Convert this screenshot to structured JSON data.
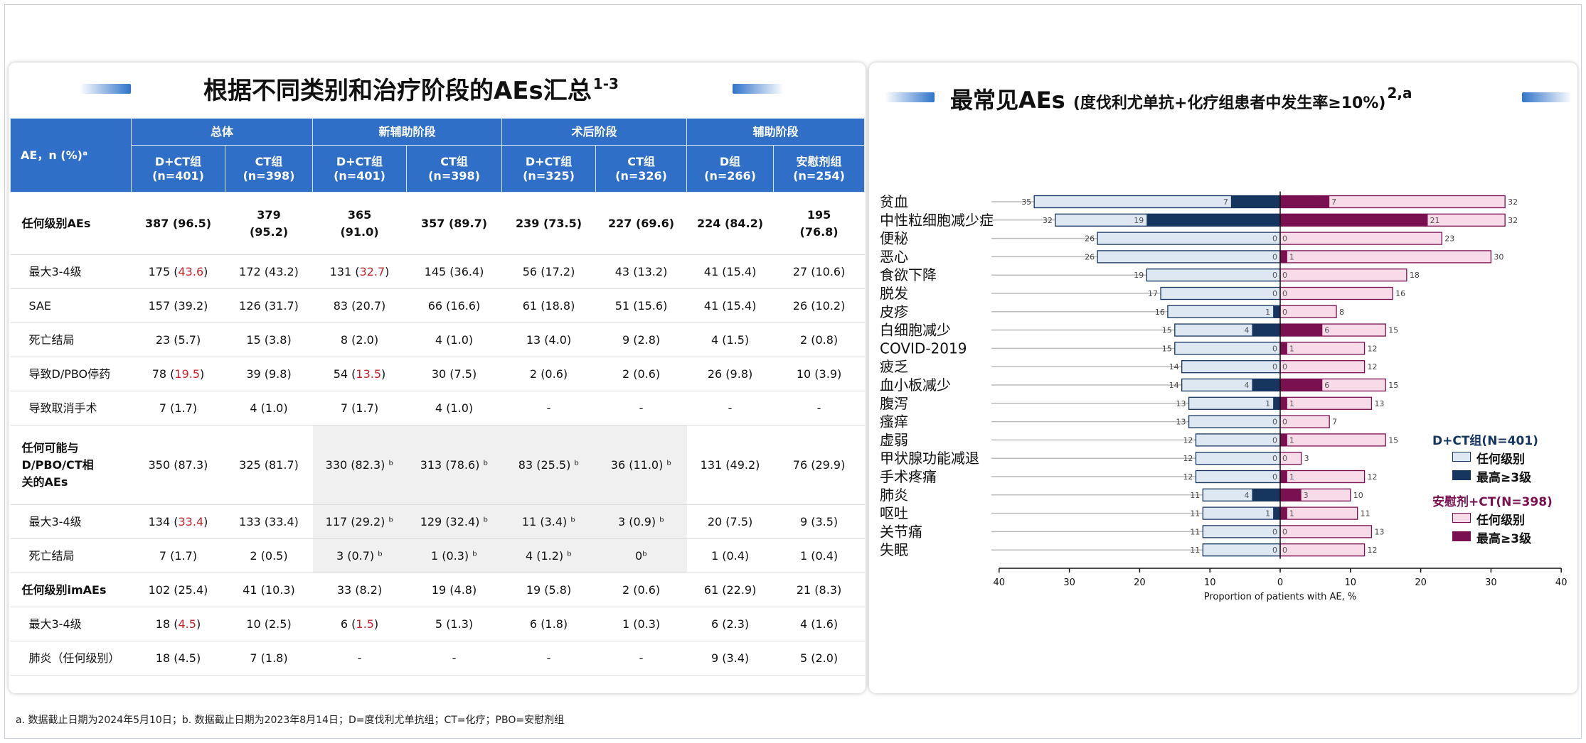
{
  "left": {
    "title": "根据不同类别和治疗阶段的AEs汇总",
    "title_sup": "1-3",
    "header": {
      "ae_col": "AE，n (%)ᵃ",
      "groups": [
        "总体",
        "新辅助阶段",
        "术后阶段",
        "辅助阶段"
      ],
      "subcols": [
        [
          "D+CT组",
          "(n=401)"
        ],
        [
          "CT组",
          "(n=398)"
        ],
        [
          "D+CT组",
          "(n=401)"
        ],
        [
          "CT组",
          "(n=398)"
        ],
        [
          "D+CT组",
          "(n=325)"
        ],
        [
          "CT组",
          "(n=326)"
        ],
        [
          "D组",
          "(n=266)"
        ],
        [
          "安慰剂组",
          "(n=254)"
        ]
      ]
    },
    "rows": [
      {
        "label": "任何级别AEs",
        "bold": true,
        "cells": [
          "387 (96.5)",
          "379 (95.2)",
          "365 (91.0)",
          "357 (89.7)",
          "239 (73.5)",
          "227 (69.6)",
          "224 (84.2)",
          "195 (76.8)"
        ]
      },
      {
        "label": "最大3-4级",
        "cells": [
          "175 (43.6)",
          "172 (43.2)",
          "131 (32.7)",
          "145 (36.4)",
          "56 (17.2)",
          "43 (13.2)",
          "41 (15.4)",
          "27 (10.6)"
        ]
      },
      {
        "label": "SAE",
        "cells": [
          "157 (39.2)",
          "126 (31.7)",
          "83 (20.7)",
          "66 (16.6)",
          "61 (18.8)",
          "51 (15.6)",
          "41 (15.4)",
          "26 (10.2)"
        ]
      },
      {
        "label": "死亡结局",
        "cells": [
          "23 (5.7)",
          "15 (3.8)",
          "8 (2.0)",
          "4 (1.0)",
          "13 (4.0)",
          "9 (2.8)",
          "4 (1.5)",
          "2 (0.8)"
        ]
      },
      {
        "label": "导致D/PBO停药",
        "cells": [
          "78 (19.5)",
          "39 (9.8)",
          "54 (13.5)",
          "30 (7.5)",
          "2 (0.6)",
          "2 (0.6)",
          "26 (9.8)",
          "10 (3.9)"
        ]
      },
      {
        "label": "导致取消手术",
        "cells": [
          "7 (1.7)",
          "4 (1.0)",
          "7 (1.7)",
          "4 (1.0)",
          "-",
          "-",
          "-",
          "-"
        ]
      },
      {
        "label": "任何可能与D/PBO/CT相关的AEs",
        "bold": true,
        "cells": [
          "350 (87.3)",
          "325 (81.7)",
          "330 (82.3) ᵇ",
          "313 (78.6) ᵇ",
          "83 (25.5) ᵇ",
          "36 (11.0) ᵇ",
          "131 (49.2)",
          "76 (29.9)"
        ]
      },
      {
        "label": "最大3-4级",
        "cells": [
          "134 (33.4)",
          "133 (33.4)",
          "117 (29.2) ᵇ",
          "129 (32.4) ᵇ",
          "11 (3.4) ᵇ",
          "3 (0.9) ᵇ",
          "20 (7.5)",
          "9 (3.5)"
        ]
      },
      {
        "label": "死亡结局",
        "cells": [
          "7 (1.7)",
          "2 (0.5)",
          "3 (0.7) ᵇ",
          "1 (0.3) ᵇ",
          "4 (1.2) ᵇ",
          "0ᵇ",
          "1 (0.4)",
          "1 (0.4)"
        ]
      },
      {
        "label": "任何级别imAEs",
        "bold": true,
        "cells": [
          "102 (25.4)",
          "41 (10.3)",
          "33 (8.2)",
          "19 (4.8)",
          "19 (5.8)",
          "2 (0.6)",
          "61 (22.9)",
          "21 (8.3)"
        ]
      },
      {
        "label": "最大3-4级",
        "cells": [
          "18 (4.5)",
          "10 (2.5)",
          "6 (1.5)",
          "5 (1.3)",
          "6 (1.8)",
          "1 (0.3)",
          "6 (2.3)",
          "4 (1.6)"
        ]
      },
      {
        "label": "肺炎（任何级别）",
        "cells": [
          "18 (4.5)",
          "7 (1.8)",
          "-",
          "-",
          "-",
          "-",
          "9 (3.4)",
          "5 (2.0)"
        ]
      }
    ]
  },
  "right": {
    "title": "最常见AEs",
    "title_sub": "(度伐利尤单抗+化疗组患者中发生率≥10%)",
    "title_sup": "2,a",
    "legend": {
      "dct_title": "D+CT组(N=401)",
      "pbo_title": "安慰剂+CT(N=398)",
      "any": "任何级别",
      "g3": "最高≥3级"
    }
  },
  "footnote": "a. 数据截止日期为2024年5月10日；b. 数据截止日期为2023年8月14日；D=度伐利尤单抗组；CT=化疗；PBO=安慰剂组",
  "colors": {
    "header_blue": "#2f6fc7",
    "red_text": "#c2242a",
    "dct_any_fill": "#dde8f3",
    "dct_any_stroke": "#16355f",
    "dct_g3": "#16355f",
    "pbo_any_fill": "#f7dbe8",
    "pbo_any_stroke": "#7a1050",
    "pbo_g3": "#7a1050"
  },
  "chart_data": {
    "type": "bar",
    "orientation": "horizontal-butterfly",
    "xlabel": "Proportion of patients with AE, %",
    "xlim": [
      -40,
      40
    ],
    "xticks": [
      40,
      30,
      20,
      10,
      0,
      10,
      20,
      30,
      40
    ],
    "categories": [
      "贫血",
      "中性粒细胞减少症",
      "便秘",
      "恶心",
      "食欲下降",
      "脱发",
      "皮疹",
      "白细胞减少",
      "COVID-2019",
      "疲乏",
      "血小板减少",
      "腹泻",
      "瘙痒",
      "虚弱",
      "甲状腺功能减退",
      "手术疼痛",
      "肺炎",
      "呕吐",
      "关节痛",
      "失眠"
    ],
    "series": [
      {
        "name": "D+CT组(N=401) 任何级别",
        "side": "left",
        "values": [
          35,
          32,
          26,
          26,
          19,
          17,
          16,
          15,
          15,
          14,
          14,
          13,
          13,
          12,
          12,
          12,
          11,
          11,
          11,
          11
        ]
      },
      {
        "name": "D+CT组(N=401) 最高≥3级",
        "side": "left",
        "values": [
          7,
          19,
          0,
          0,
          0,
          0,
          1,
          4,
          0,
          0,
          4,
          1,
          0,
          0,
          0,
          0,
          4,
          1,
          0,
          0
        ]
      },
      {
        "name": "安慰剂+CT(N=398) 任何级别",
        "side": "right",
        "values": [
          32,
          32,
          23,
          30,
          18,
          16,
          8,
          15,
          12,
          12,
          15,
          13,
          7,
          15,
          3,
          12,
          10,
          11,
          13,
          12
        ]
      },
      {
        "name": "安慰剂+CT(N=398) 最高≥3级",
        "side": "right",
        "values": [
          7,
          21,
          0,
          1,
          0,
          0,
          0,
          6,
          1,
          0,
          6,
          1,
          0,
          1,
          0,
          1,
          3,
          1,
          0,
          0
        ]
      }
    ],
    "grid": false,
    "legend_position": "right"
  }
}
